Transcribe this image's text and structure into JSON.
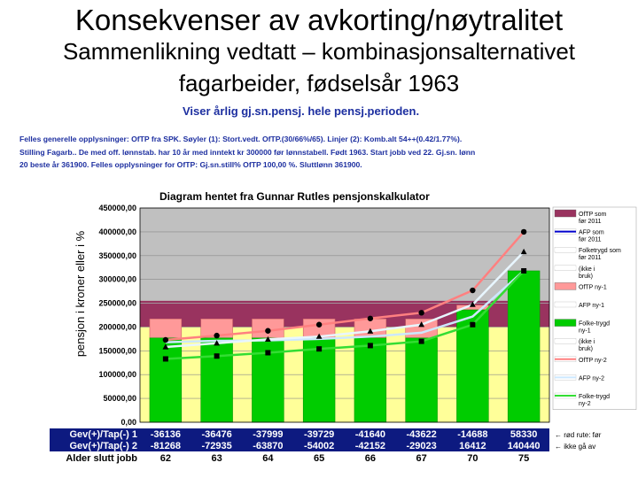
{
  "slide": {
    "title": "Konsekvenser av avkorting/nøytralitet",
    "subtitle_line1": "Sammenlikning vedtatt – kombinasjonsalternativet",
    "subtitle_line2": "fagarbeider, fødselsår 1963"
  },
  "colors": {
    "ofTP_2011_band": "#99335f",
    "afp_2011_band": "#ccccc8",
    "folketrygd_2011_band": "#ffff99",
    "ofTP_bar": "#ff9999",
    "folketrygd_bar": "#00cc00",
    "afp_line": "#0000cc",
    "ofTP_line": "#ff8080",
    "afp_line2": "#cce8ff",
    "folketrygd_line": "#33dd33",
    "header_blue": "#1d2fa0",
    "header_red": "#cc0000",
    "table_bg": "#0d1a80",
    "table_text": "#ffffff"
  },
  "chart_data": {
    "type": "bar",
    "header_title": "Viser årlig gj.sn.pensj. hele pensj.perioden.",
    "info_lines": [
      "Felles generelle opplysninger: OfTP fra SPK. Søyler (1): Stort.vedt. OfTP.(30/66%/65). Linjer (2): Komb.alt 54++(0.42/1.77%).",
      "Stilling Fagarb.. De med off. lønnstab. har 10 år med inntekt kr 300000 før lønnstabell. Født 1963. Start jobb ved 22. Gj.sn. lønn",
      "20 beste år 361900. Felles opplysninger for OfTP: Gj.sn.still% OfTP 100,00 %. Sluttlønn 361900."
    ],
    "title": "Diagram hentet fra Gunnar Rutles pensjonskalkulator",
    "ylabel": "pensjon i kroner eller i %",
    "ylim": [
      0,
      450000
    ],
    "ytick_labels": [
      "0,00",
      "50000,00",
      "100000,00",
      "150000,00",
      "200000,00",
      "250000,00",
      "300000,00",
      "350000,00",
      "400000,00",
      "450000,00"
    ],
    "categories": [
      "62",
      "63",
      "64",
      "65",
      "66",
      "67",
      "70",
      "75"
    ],
    "bands_2011": {
      "folketrygd": 200000,
      "afp": 250000,
      "ofTP": 255000
    },
    "series": [
      {
        "name": "Folke-trygd ny-1",
        "kind": "bar",
        "values": [
          177000,
          177000,
          177000,
          177000,
          177000,
          177000,
          236000,
          318000
        ]
      },
      {
        "name": "OfTP ny-1",
        "kind": "bar",
        "values": [
          40000,
          40000,
          40000,
          40000,
          40000,
          40000,
          10000,
          0
        ]
      },
      {
        "name": "AFP ny-1",
        "kind": "line",
        "values": [
          168000,
          171000,
          172000,
          175000,
          180000,
          188000,
          222000,
          318000
        ]
      },
      {
        "name": "OfTP ny-2",
        "kind": "line",
        "values": [
          173000,
          182000,
          192000,
          205000,
          218000,
          230000,
          277000,
          400000
        ]
      },
      {
        "name": "AFP ny-2",
        "kind": "line",
        "values": [
          158000,
          166000,
          174000,
          180000,
          191000,
          205000,
          247000,
          358000
        ]
      },
      {
        "name": "Folke-trygd ny-2",
        "kind": "line",
        "values": [
          133000,
          139000,
          146000,
          154000,
          161000,
          170000,
          205000,
          318000
        ]
      }
    ],
    "legend": [
      {
        "label": "OfTP som før 2011",
        "swatch": "band",
        "color": "#99335f"
      },
      {
        "label": "AFP som før 2011",
        "swatch": "line",
        "color": "#0000cc"
      },
      {
        "label": "Folketrygd som før 2011",
        "swatch": "line",
        "color": "#ffffff"
      },
      {
        "label": "(ikke i bruk)",
        "swatch": "line",
        "color": "#ffffff"
      },
      {
        "label": "OfTP ny-1",
        "swatch": "box",
        "color": "#ff9999"
      },
      {
        "label": "AFP ny-1",
        "swatch": "line",
        "color": "#ffffff"
      },
      {
        "label": "Folke-trygd ny-1",
        "swatch": "box",
        "color": "#00cc00"
      },
      {
        "label": "(ikke i bruk)",
        "swatch": "line",
        "color": "#ffffff"
      },
      {
        "label": "OfTP ny-2",
        "swatch": "line",
        "color": "#ff8080"
      },
      {
        "label": "AFP ny-2",
        "swatch": "line",
        "color": "#cce8ff"
      },
      {
        "label": "Folke-trygd ny-2",
        "swatch": "line",
        "color": "#33dd33"
      }
    ],
    "table": {
      "row_labels": [
        "Gev(+)/Tap(-) 1",
        "Gev(+)/Tap(-) 2",
        "Alder slutt jobb"
      ],
      "row1": [
        "-36136",
        "-36476",
        "-37999",
        "-39729",
        "-41640",
        "-43622",
        "-14688",
        "58330"
      ],
      "row2": [
        "-81268",
        "-72935",
        "-63870",
        "-54002",
        "-42152",
        "-29023",
        "16412",
        "140440"
      ],
      "notes": [
        "← rød rute: før",
        "← ikke gå av"
      ]
    }
  }
}
